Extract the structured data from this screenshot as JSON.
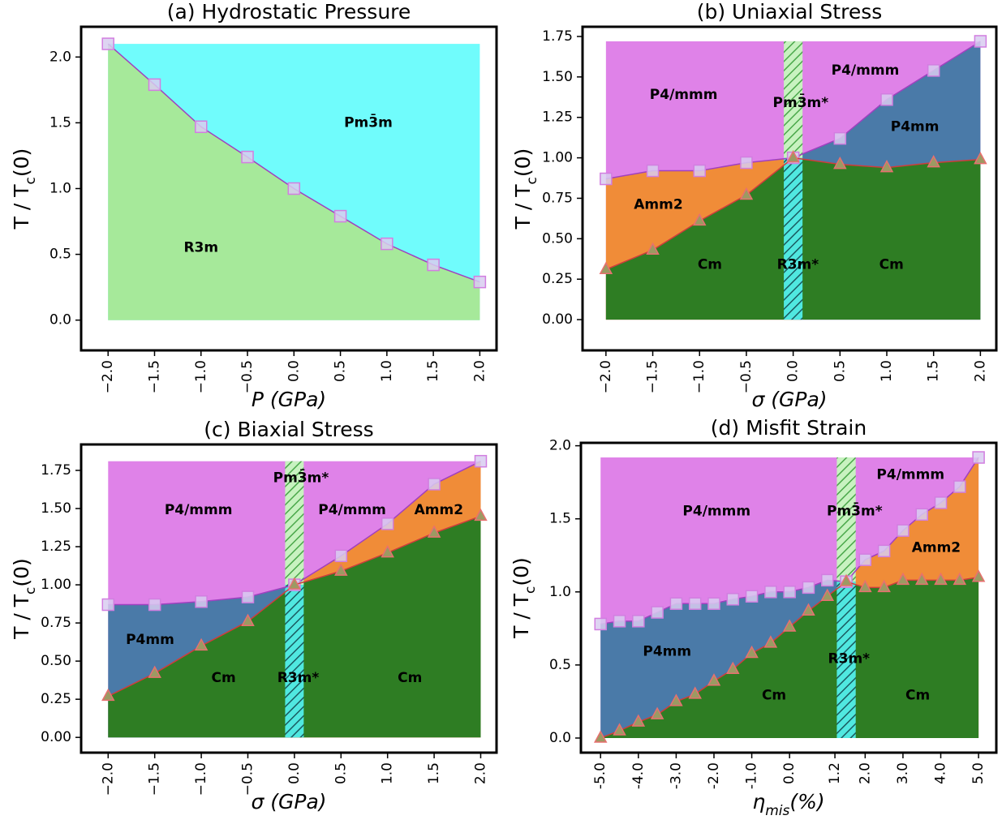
{
  "chart_data": [
    {
      "type": "phase",
      "title": "(a) Hydrostatic Pressure",
      "xlabel": "P (GPa)",
      "ylabel": [
        "T / T",
        "c",
        "(0)"
      ],
      "xlim": [
        -2.29,
        2.18
      ],
      "ylim": [
        -0.23,
        2.23
      ],
      "xticks": [
        {
          "value": -2,
          "label": "−2.0"
        },
        {
          "value": -1.5,
          "label": "−1.5"
        },
        {
          "value": -1,
          "label": "−1.0"
        },
        {
          "value": -0.5,
          "label": "−0.5"
        },
        {
          "value": 0,
          "label": "0.0"
        },
        0.5,
        {
          "value": 1,
          "label": "1.0"
        },
        1.5,
        {
          "value": 2,
          "label": "2.0"
        }
      ],
      "yticks": [
        {
          "value": 0,
          "label": "0.0"
        },
        0.5,
        {
          "value": 1,
          "label": "1.0"
        },
        1.5,
        {
          "value": 2,
          "label": "2.0"
        }
      ],
      "x": [
        -2,
        -1.5,
        -1,
        -0.5,
        0,
        0.5,
        1,
        1.5,
        2
      ],
      "series": [
        {
          "color": "#a040c0",
          "marker": "square",
          "values": [
            2.1,
            1.79,
            1.47,
            1.24,
            1.0,
            0.79,
            0.58,
            0.42,
            0.29
          ]
        }
      ],
      "colors": {
        "top": "#70fcfc",
        "left": "#a6e99a",
        "right": "#a6e99a"
      },
      "labels": [
        "Pm3̄m",
        "R3m"
      ]
    },
    {
      "type": "phase",
      "title": "(b) Uniaxial Stress",
      "xlabel": "σ (GPa)",
      "ylabel": [
        "T / T",
        "c",
        "(0)"
      ],
      "xlim": [
        -2.25,
        2.17
      ],
      "ylim": [
        -0.19,
        1.81
      ],
      "xticks": [
        {
          "value": -2,
          "label": "−2.0"
        },
        {
          "value": -1.5,
          "label": "−1.5"
        },
        {
          "value": -1,
          "label": "−1.0"
        },
        {
          "value": -0.5,
          "label": "−0.5"
        },
        {
          "value": 0,
          "label": "0.0"
        },
        0.5,
        {
          "value": 1,
          "label": "1.0"
        },
        1.5,
        {
          "value": 2,
          "label": "2.0"
        }
      ],
      "yticks": [
        {
          "value": 0,
          "label": "0.00"
        },
        0.25,
        {
          "value": 0.5,
          "label": "0.50"
        },
        0.75,
        {
          "value": 1,
          "label": "1.00"
        },
        1.25,
        {
          "value": 1.5,
          "label": "1.50"
        },
        1.75
      ],
      "x": [
        -2,
        -1.5,
        -1,
        -0.5,
        0,
        0.5,
        1,
        1.5,
        2
      ],
      "series": [
        {
          "color": "#a040c0",
          "marker": "square",
          "values": [
            0.87,
            0.92,
            0.92,
            0.97,
            1.0,
            1.12,
            1.36,
            1.54,
            1.72
          ]
        },
        {
          "color": "#d03c3c",
          "marker": "triangle",
          "values": [
            0.31,
            0.43,
            0.61,
            0.77,
            1.0,
            0.96,
            0.94,
            0.97,
            0.99
          ]
        }
      ],
      "band": [
        -0.1,
        0.1
      ],
      "colors": {
        "top": "#df82e8",
        "left": "#f08c38",
        "right": "#4a7aa8",
        "bottom": "#2e7d23"
      },
      "labels": [
        "P4/mmm",
        "P4/mmm",
        "Pm3̄m*",
        "P4mm",
        "Amm2",
        "Cm",
        "R3m*",
        "Cm"
      ]
    },
    {
      "type": "phase",
      "title": "(c) Biaxial Stress",
      "xlabel": "σ (GPa)",
      "ylabel": [
        "T / T",
        "c",
        "(0)"
      ],
      "xlim": [
        -2.29,
        2.17
      ],
      "ylim": [
        -0.1,
        1.92
      ],
      "xticks": [
        {
          "value": -2,
          "label": "−2.0"
        },
        {
          "value": -1.5,
          "label": "−1.5"
        },
        {
          "value": -1,
          "label": "−1.0"
        },
        {
          "value": -0.5,
          "label": "−0.5"
        },
        {
          "value": 0,
          "label": "0.0"
        },
        0.5,
        {
          "value": 1,
          "label": "1.0"
        },
        1.5,
        {
          "value": 2,
          "label": "2.0"
        }
      ],
      "yticks": [
        {
          "value": 0,
          "label": "0.00"
        },
        0.25,
        {
          "value": 0.5,
          "label": "0.50"
        },
        0.75,
        {
          "value": 1,
          "label": "1.00"
        },
        1.25,
        {
          "value": 1.5,
          "label": "1.50"
        },
        1.75
      ],
      "x": [
        -2,
        -1.5,
        -1,
        -0.5,
        0,
        0.5,
        1,
        1.5,
        2
      ],
      "series": [
        {
          "color": "#a040c0",
          "marker": "square",
          "values": [
            0.87,
            0.87,
            0.89,
            0.92,
            1.0,
            1.19,
            1.4,
            1.66,
            1.81
          ]
        },
        {
          "color": "#d03c3c",
          "marker": "triangle",
          "values": [
            0.27,
            0.42,
            0.6,
            0.76,
            1.0,
            1.09,
            1.21,
            1.34,
            1.45
          ]
        }
      ],
      "band": [
        -0.1,
        0.1
      ],
      "colors": {
        "top": "#df82e8",
        "left": "#4a7aa8",
        "right": "#f08c38",
        "bottom": "#2e7d23"
      },
      "labels": [
        "P4/mmm",
        "Pm3̄m*",
        "P4/mmm",
        "Amm2",
        "P4mm",
        "Cm",
        "R3m*",
        "Cm"
      ]
    },
    {
      "type": "phase",
      "title": "(d) Misfit Strain",
      "xlabel": [
        "η",
        "mis",
        "(%)"
      ],
      "ylabel": [
        "T / T",
        "c",
        "(0)"
      ],
      "xlim": [
        -5.52,
        5.47
      ],
      "ylim": [
        -0.1,
        2.02
      ],
      "xticks": [
        {
          "value": -5,
          "label": "-5.0"
        },
        {
          "value": -4,
          "label": "-4.0"
        },
        {
          "value": -3,
          "label": "-3.0"
        },
        {
          "value": -2,
          "label": "-2.0"
        },
        {
          "value": -1,
          "label": "-1.0"
        },
        {
          "value": 0,
          "label": "0.0"
        },
        1.2,
        {
          "value": 2,
          "label": "2.0"
        },
        {
          "value": 3,
          "label": "3.0"
        },
        {
          "value": 4,
          "label": "4.0"
        },
        {
          "value": 5,
          "label": "5.0"
        }
      ],
      "yticks": [
        {
          "value": 0,
          "label": "0.0"
        },
        0.5,
        {
          "value": 1,
          "label": "1.0"
        },
        1.5,
        {
          "value": 2,
          "label": "2.0"
        }
      ],
      "x": [
        -5,
        -4.5,
        -4,
        -3.5,
        -3,
        -2.5,
        -2,
        -1.5,
        -1,
        -0.5,
        0,
        0.5,
        1,
        1.5,
        2,
        2.5,
        3,
        3.5,
        4,
        4.5,
        5
      ],
      "series": [
        {
          "color": "#a040c0",
          "marker": "square",
          "values": [
            0.78,
            0.8,
            0.8,
            0.86,
            0.92,
            0.92,
            0.92,
            0.95,
            0.97,
            1.0,
            1.0,
            1.03,
            1.08,
            1.07,
            1.22,
            1.28,
            1.42,
            1.53,
            1.61,
            1.72,
            1.92
          ]
        },
        {
          "color": "#d03c3c",
          "marker": "triangle",
          "values": [
            0.0,
            0.05,
            0.11,
            0.16,
            0.25,
            0.3,
            0.39,
            0.47,
            0.58,
            0.65,
            0.76,
            0.87,
            0.97,
            1.07,
            1.03,
            1.03,
            1.08,
            1.08,
            1.08,
            1.08,
            1.1
          ]
        }
      ],
      "band": [
        1.25,
        1.75
      ],
      "colors": {
        "top": "#df82e8",
        "left": "#4a7aa8",
        "right": "#f08c38",
        "bottom": "#2e7d23"
      },
      "labels": [
        "P4/mmm",
        "Pm3̄m*",
        "P4/mmm",
        "Amm2",
        "P4mm",
        "Cm",
        "R3m*",
        "Cm"
      ]
    }
  ]
}
